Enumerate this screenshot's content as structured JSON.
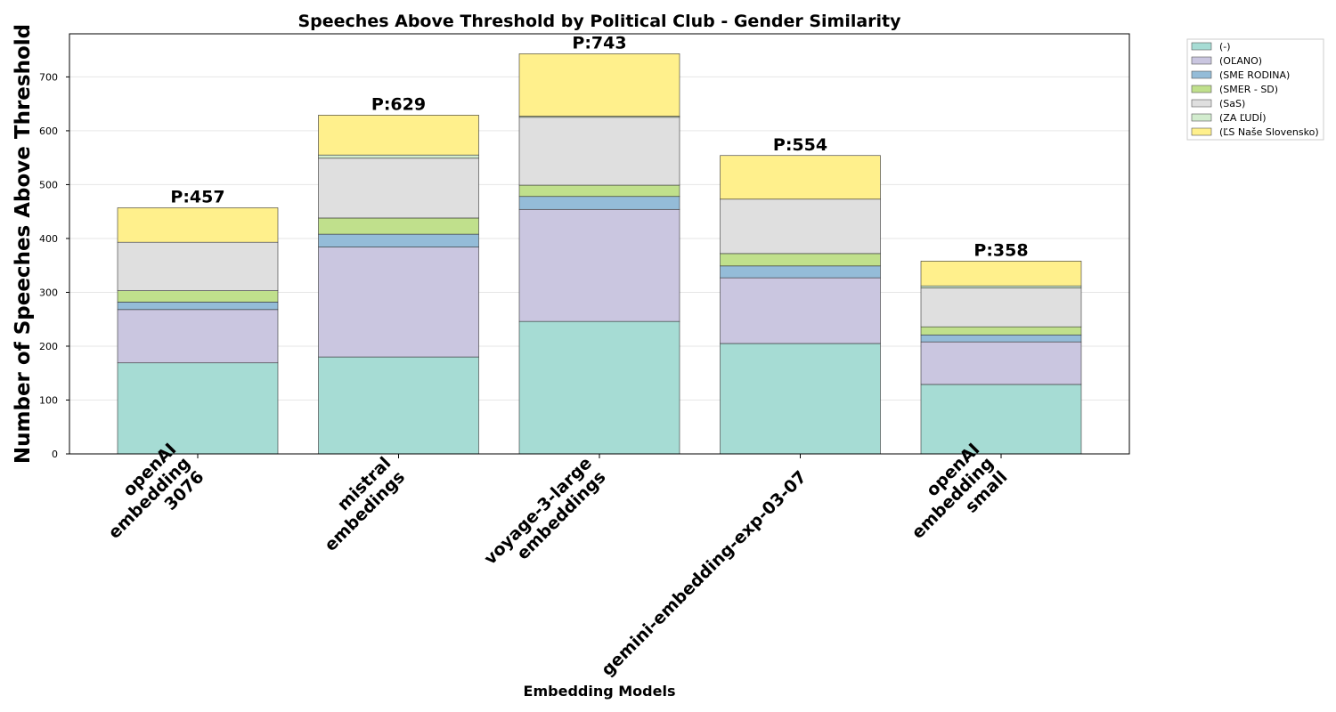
{
  "chart_data": {
    "type": "bar",
    "stacked": true,
    "title": "Speeches Above Threshold by Political Club - Gender Similarity",
    "xlabel": "Embedding Models",
    "ylabel": "Number of Speeches Above Threshold",
    "ylim": [
      0,
      780
    ],
    "yticks": [
      0,
      100,
      200,
      300,
      400,
      500,
      600,
      700
    ],
    "grid": true,
    "legend_position": "outside-top-right",
    "categories": [
      [
        "openAI",
        "embedding",
        "3076"
      ],
      [
        "mistral",
        "embedings"
      ],
      [
        "voyage-3-large",
        "embeddings"
      ],
      [
        "gemini-embedding-exp-03-07"
      ],
      [
        "openAI",
        "embedding",
        "small"
      ]
    ],
    "series": [
      {
        "name": "(-)",
        "color": "#a6dcd4",
        "values": [
          169,
          180,
          246,
          205,
          129
        ]
      },
      {
        "name": "(OĽANO)",
        "color": "#cac6e0",
        "values": [
          99,
          204,
          208,
          122,
          79
        ]
      },
      {
        "name": "(SME RODINA)",
        "color": "#94bcd8",
        "values": [
          14,
          24,
          24,
          22,
          13
        ]
      },
      {
        "name": "(SMER - SD)",
        "color": "#c0e08c",
        "values": [
          21,
          30,
          21,
          23,
          15
        ]
      },
      {
        "name": "(SaS)",
        "color": "#dfdfdf",
        "values": [
          90,
          111,
          126,
          101,
          72
        ]
      },
      {
        "name": "(ZA ĽUDÍ)",
        "color": "#d2ecce",
        "values": [
          0,
          6,
          2,
          0,
          4
        ]
      },
      {
        "name": "(ĽS Naše Slovensko)",
        "color": "#fff08c",
        "values": [
          64,
          74,
          116,
          81,
          46
        ]
      }
    ],
    "totals": [
      457,
      629,
      743,
      554,
      358
    ],
    "total_prefix": "P:"
  }
}
